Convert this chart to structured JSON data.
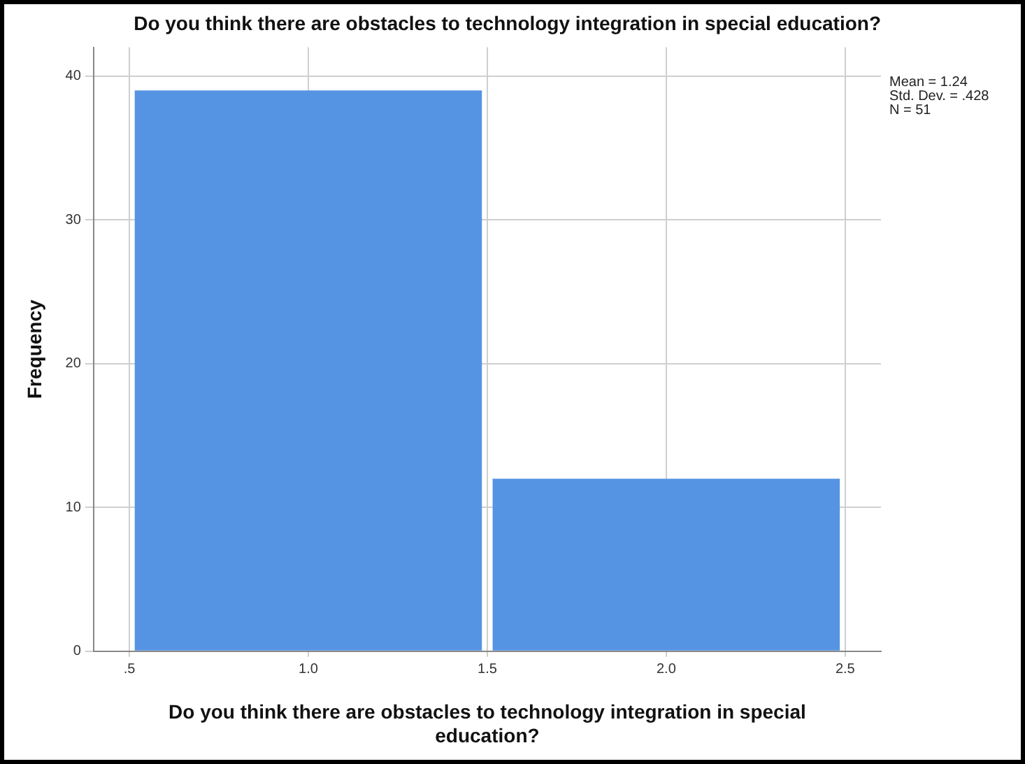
{
  "chart_data": {
    "type": "histogram",
    "title": "Do you think there are obstacles to technology integration in special education?",
    "xlabel": "Do you think there are obstacles to technology integration in special education?",
    "ylabel": "Frequency",
    "bins": [
      0.5,
      1.5,
      2.5
    ],
    "values": [
      39,
      12
    ],
    "color": "#5594e3",
    "xlim": [
      0.4,
      2.6
    ],
    "xticks": [
      {
        "value": 0.5,
        "label": ".5"
      },
      {
        "value": 1,
        "label": "1.0"
      },
      {
        "value": 1.5,
        "label": "1.5"
      },
      {
        "value": 2,
        "label": "2.0"
      },
      {
        "value": 2.5,
        "label": "2.5"
      }
    ],
    "ylim": [
      0,
      42
    ],
    "yticks": [
      0,
      10,
      20,
      30,
      40
    ],
    "grid": true,
    "legend": false,
    "annotations": [
      "Mean = 1.24",
      "Std. Dev. = .428",
      "N = 51"
    ]
  }
}
